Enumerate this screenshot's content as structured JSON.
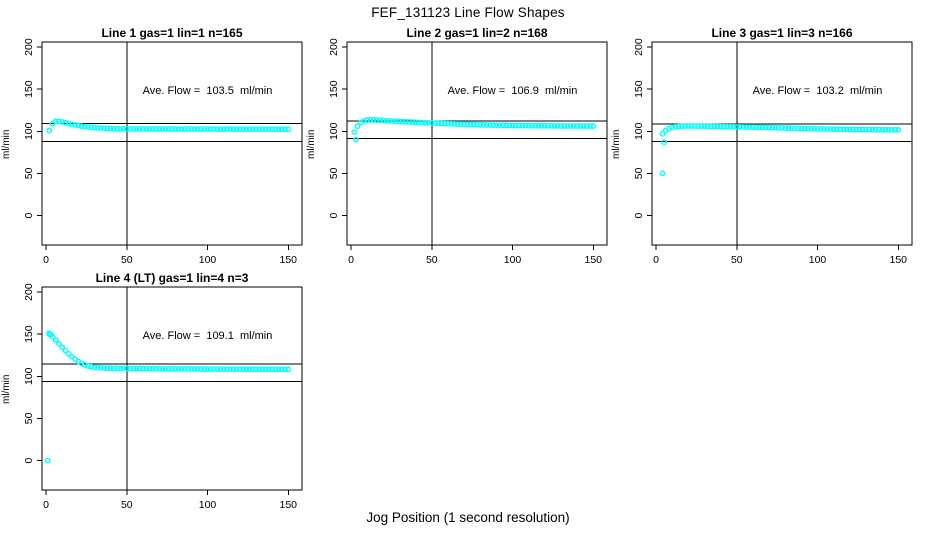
{
  "title": "FEF_131123  Line Flow Shapes",
  "xlabel": "Jog Position (1 second resolution)",
  "ylabel": "ml/min",
  "colors": {
    "points": "#00FFFF",
    "axis": "#000000",
    "background": "#FFFFFF"
  },
  "axes": {
    "xlim": [
      -2.5,
      158.5
    ],
    "ylim": [
      -35,
      206
    ],
    "x_ticks": [
      0,
      50,
      100,
      150
    ],
    "y_ticks": [
      0,
      50,
      100,
      150,
      200
    ],
    "grid": false
  },
  "chart_data": [
    {
      "type": "scatter",
      "title": "Line 1 gas=1 lin=1 n=165",
      "annotation": "Ave. Flow =  103.5  ml/min",
      "ave_flow": 103.5,
      "vline_x": 50,
      "hlines": [
        109.0,
        88.0
      ],
      "x_start": 2,
      "x_step": 2,
      "y": [
        101,
        109,
        111.8,
        111.9,
        111.2,
        110.2,
        109.2,
        108.3,
        107.5,
        106.8,
        106.1,
        105.6,
        105.1,
        104.7,
        104.3,
        104,
        103.8,
        103.6,
        103.4,
        103.2,
        103.1,
        103,
        102.9,
        103,
        102.8,
        102.9,
        102.8,
        102.9,
        102.7,
        102.9,
        102.8,
        102.7,
        102.9,
        102.8,
        102.7,
        102.8,
        102.9,
        102.7,
        102.8,
        102.7,
        102.8,
        102.6,
        102.8,
        102.7,
        102.8,
        102.6,
        102.7,
        102.8,
        102.6,
        102.7,
        102.8,
        102.6,
        102.7,
        102.6,
        102.7,
        102.8,
        102.6,
        102.7,
        102.5,
        102.7,
        102.6,
        102.7,
        102.5,
        102.6,
        102.7,
        102.5,
        102.6,
        102.5,
        102.6,
        102.5,
        102.6,
        102.4,
        102.5,
        102.4,
        102.5
      ],
      "outliers": []
    },
    {
      "type": "scatter",
      "title": "Line 2 gas=1 lin=2 n=168",
      "annotation": "Ave. Flow =  106.9  ml/min",
      "ave_flow": 106.9,
      "vline_x": 50,
      "hlines": [
        112.4,
        91.4
      ],
      "x_start": 2,
      "x_step": 2,
      "y": [
        99,
        106,
        110.5,
        112.5,
        113.3,
        113.6,
        113.5,
        113.3,
        113,
        112.8,
        112.5,
        112.3,
        112.1,
        111.9,
        111.7,
        111.5,
        111.3,
        111.1,
        110.9,
        110.7,
        110.5,
        110.4,
        110.2,
        110,
        109.9,
        109.7,
        109.5,
        109.4,
        109.2,
        109.1,
        108.9,
        108.8,
        108.6,
        108.5,
        108.4,
        108.2,
        108.1,
        108,
        107.9,
        107.7,
        107.6,
        107.5,
        107.4,
        107.3,
        107.2,
        107.2,
        107.1,
        107,
        106.9,
        106.9,
        106.8,
        106.8,
        106.7,
        106.7,
        106.6,
        106.6,
        106.6,
        106.5,
        106.5,
        106.5,
        106.5,
        106.4,
        106.4,
        106.4,
        106.4,
        106.4,
        106.3,
        106.3,
        106.3,
        106.3,
        106.3,
        106.3,
        106.2,
        106.2,
        106.2
      ],
      "outliers": [
        [
          3,
          90
        ]
      ]
    },
    {
      "type": "scatter",
      "title": "Line 3 gas=1 lin=3 n=166",
      "annotation": "Ave. Flow =  103.2  ml/min",
      "ave_flow": 103.2,
      "vline_x": 50,
      "hlines": [
        108.7,
        87.7
      ],
      "x_start": 4,
      "x_step": 2,
      "y": [
        97,
        101,
        103.2,
        104.5,
        105.3,
        105.8,
        106.1,
        106.3,
        106.4,
        106.3,
        106.3,
        106.2,
        106.1,
        106.1,
        106,
        105.9,
        105.9,
        105.8,
        105.7,
        105.6,
        105.5,
        105.5,
        105.4,
        105.3,
        105.2,
        105.1,
        105,
        104.9,
        104.9,
        104.8,
        104.7,
        104.6,
        104.5,
        104.4,
        104.3,
        104.2,
        104.1,
        104,
        103.9,
        103.8,
        103.7,
        103.6,
        103.5,
        103.4,
        103.3,
        103.2,
        103.1,
        103,
        102.9,
        102.9,
        102.8,
        102.7,
        102.6,
        102.5,
        102.5,
        102.4,
        102.3,
        102.3,
        102.2,
        102.2,
        102.1,
        102.1,
        102,
        102,
        102,
        101.9,
        101.9,
        101.9,
        101.8,
        101.8,
        101.8,
        101.7,
        101.7,
        101.7
      ],
      "outliers": [
        [
          5,
          87
        ],
        [
          4,
          50
        ]
      ]
    },
    {
      "type": "scatter",
      "title": "Line 4 (LT) gas=1 lin=4 n=3",
      "annotation": "Ave. Flow =  109.1  ml/min",
      "ave_flow": 109.1,
      "vline_x": 50,
      "hlines": [
        114.6,
        93.6
      ],
      "x_start": 2,
      "x_step": 2,
      "y": [
        151,
        147,
        143,
        138.7,
        134.5,
        130.5,
        126.7,
        123.3,
        120.2,
        117.5,
        115.3,
        113.6,
        112.3,
        111.4,
        110.7,
        110.3,
        110,
        109.8,
        109.7,
        109.6,
        109.5,
        109.5,
        109.4,
        109.4,
        109.3,
        109.3,
        109.2,
        109.2,
        109.2,
        109.1,
        109.1,
        109.1,
        109,
        109,
        109,
        108.9,
        108.9,
        108.9,
        108.9,
        108.8,
        108.8,
        108.8,
        108.8,
        108.7,
        108.7,
        108.7,
        108.7,
        108.7,
        108.6,
        108.6,
        108.6,
        108.6,
        108.6,
        108.5,
        108.5,
        108.5,
        108.5,
        108.5,
        108.5,
        108.4,
        108.4,
        108.4,
        108.4,
        108.4,
        108.4,
        108.3,
        108.3,
        108.3,
        108.3,
        108.3,
        108.3,
        108.3,
        108.2,
        108.2,
        108.2
      ],
      "outliers": [
        [
          1,
          0
        ],
        [
          2,
          150
        ],
        [
          3,
          149.5
        ],
        [
          1.8,
          150.8
        ]
      ]
    }
  ]
}
